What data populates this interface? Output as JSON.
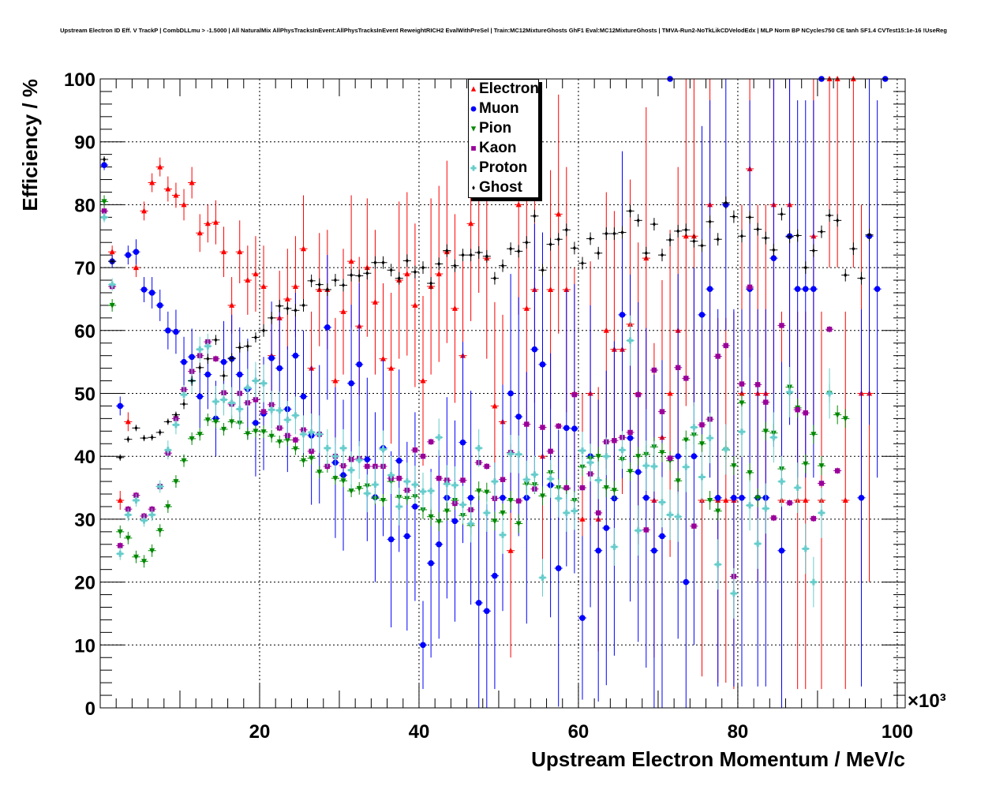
{
  "chart_data": {
    "type": "scatter",
    "title": "Upstream Electron ID Eff. V TrackP | CombDLLmu > -1.5000 | All NaturalMix AllPhysTracksInEvent:AllPhysTracksInEvent ReweightRICH2 EvalWithPreSel | Train:MC12MixtureGhosts GhF1 Eval:MC12MixtureGhosts | TMVA-Run2-NoTkLikCDVelodEdx | MLP Norm BP NCycles750 CE tanh SF1.4 CVTest15:1e-16 !UseReg",
    "xlabel": "Upstream Electron Momentum / MeV/c",
    "ylabel": "Efficiency / %",
    "x_multiplier": "×10³",
    "xlim": [
      0,
      101
    ],
    "ylim": [
      0,
      100
    ],
    "x_bin_width": 1,
    "x_first_center": 0.5,
    "xticks": [
      "20",
      "40",
      "60",
      "80",
      "100"
    ],
    "yticks": [
      "0",
      "10",
      "20",
      "30",
      "40",
      "50",
      "60",
      "70",
      "80",
      "90",
      "100"
    ],
    "grid": true,
    "legend_position": "top-center",
    "series": [
      {
        "name": "Electron",
        "color": "#ff0000",
        "marker": "triangle-up",
        "values": [
          null,
          72.5,
          33,
          45.5,
          70,
          79,
          83.5,
          86,
          82.5,
          81.5,
          80,
          83.5,
          75.5,
          77,
          77.2,
          72.5,
          64,
          72.5,
          68,
          69,
          67,
          56,
          62,
          65,
          67,
          73,
          54,
          66.5,
          66.5,
          52,
          63,
          71,
          60.7,
          70,
          64.5,
          55.5,
          54,
          68,
          69,
          64,
          52,
          67,
          69,
          72.5,
          63.5,
          56,
          77,
          82,
          71.5,
          48,
          45.5,
          25,
          80,
          63.5,
          66.5,
          40,
          66.5,
          78.5,
          66.5,
          50,
          30,
          50,
          30,
          60,
          57,
          57,
          61,
          50,
          71.5,
          33,
          43,
          50,
          60,
          75,
          75,
          33,
          80,
          33,
          33,
          33,
          50,
          85.7,
          50,
          50,
          80,
          33,
          80,
          33,
          33,
          75,
          33,
          100,
          100,
          33,
          100,
          50,
          50,
          null,
          null,
          null
        ],
        "errors": [
          0,
          1,
          1.5,
          1.5,
          1.5,
          1.5,
          1.5,
          1.5,
          2,
          2,
          2.5,
          2.5,
          3,
          3,
          3.5,
          4,
          4.5,
          5,
          5.5,
          6,
          6.5,
          7,
          7.5,
          8,
          8,
          8.5,
          9,
          9,
          9.5,
          10,
          10,
          10.5,
          11,
          11,
          11.5,
          12,
          12,
          12.5,
          13,
          13,
          13.5,
          14,
          14,
          14.5,
          15,
          15,
          15.5,
          16,
          16,
          16.5,
          17,
          17,
          17.5,
          18,
          18,
          18.5,
          19,
          19,
          19.5,
          20,
          20,
          21,
          21,
          22,
          22,
          23,
          23,
          24,
          24,
          25,
          25,
          26,
          26,
          27,
          27,
          28,
          28,
          29,
          29,
          30,
          30,
          30,
          30,
          30,
          30,
          30,
          30,
          30,
          30,
          30,
          30,
          30,
          30,
          30,
          30,
          30,
          30,
          0,
          0,
          0
        ]
      },
      {
        "name": "Muon",
        "color": "#0000ff",
        "marker": "circle",
        "values": [
          86.3,
          71,
          48,
          72,
          72.5,
          66.5,
          66,
          64,
          60,
          59.8,
          55,
          55.8,
          49.5,
          53,
          46,
          55,
          55.5,
          53,
          50.7,
          45.3,
          46.8,
          55.6,
          54,
          47.5,
          56,
          49.5,
          43.3,
          43.5,
          60.5,
          39,
          37,
          51.6,
          54.6,
          39.5,
          33.5,
          41.3,
          26.8,
          39.3,
          27.3,
          32,
          10,
          23,
          26,
          33.4,
          29.7,
          42.2,
          33.4,
          16.7,
          15.4,
          21,
          33.4,
          50,
          46.3,
          33.4,
          57,
          54.6,
          35.4,
          22.2,
          44.5,
          44.4,
          14.3,
          40,
          25,
          28.6,
          33.3,
          62.5,
          42.9,
          37.5,
          33.4,
          25,
          27.3,
          100,
          40,
          20,
          40,
          62.5,
          66.6,
          33.4,
          80,
          33.4,
          33.4,
          66.6,
          33.4,
          33.4,
          71.5,
          25,
          75,
          66.6,
          66.6,
          66.6,
          100,
          null,
          null,
          null,
          null,
          33.4,
          75,
          66.6,
          100
        ],
        "errors": [
          0.8,
          1,
          1.5,
          1.5,
          2,
          2,
          2.5,
          2.5,
          3,
          3.5,
          4,
          4.5,
          5,
          5.5,
          6,
          6.5,
          7,
          7.5,
          8,
          8.5,
          9,
          9,
          9.5,
          10,
          10,
          10.5,
          11,
          11,
          11.5,
          12,
          12,
          12.5,
          13,
          13,
          13.5,
          14,
          14,
          14.5,
          15,
          15,
          7,
          15,
          15,
          16,
          16,
          16,
          17,
          17,
          17,
          18,
          18,
          19,
          19,
          20,
          20,
          21,
          21,
          22,
          22,
          23,
          13,
          24,
          24,
          25,
          25,
          26,
          26,
          27,
          27,
          28,
          28,
          0,
          29,
          20,
          30,
          30,
          30,
          30,
          20,
          30,
          30,
          30,
          30,
          30,
          30,
          30,
          30,
          30,
          30,
          30,
          0,
          0,
          0,
          0,
          0,
          30,
          30,
          30,
          0
        ]
      },
      {
        "name": "Pion",
        "color": "#008800",
        "marker": "triangle-down",
        "values": [
          80.5,
          64,
          28,
          27,
          24,
          23.3,
          25,
          28.2,
          32,
          36,
          39.3,
          42.8,
          43.5,
          45.8,
          45.5,
          44.3,
          45.5,
          45.3,
          43.6,
          44,
          43.9,
          43.2,
          42.3,
          42.6,
          41.2,
          39.3,
          39.7,
          37.5,
          38.4,
          36.5,
          36.1,
          34.5,
          34.9,
          35.3,
          33.3,
          33,
          36,
          33.5,
          33.3,
          33.6,
          31.5,
          30.4,
          29.6,
          31.3,
          33,
          30.6,
          29,
          34.5,
          34.3,
          29.7,
          31,
          33,
          29.3,
          35.6,
          35.5,
          33.7,
          37.4,
          35,
          34.8,
          33,
          38.3,
          39.7,
          40,
          35,
          34.6,
          39.5,
          37.6,
          40,
          40.3,
          41.5,
          40.6,
          39.3,
          36.1,
          42.6,
          43.4,
          42,
          33,
          31.3,
          41,
          38.5,
          48.5,
          37.4,
          33.4,
          44,
          43.7,
          38,
          51,
          47.7,
          38.8,
          43.5,
          38.5,
          50,
          46.6,
          46
        ],
        "errors": [
          1,
          1,
          1,
          1,
          1,
          1,
          1,
          1,
          1,
          1,
          1,
          1,
          1,
          1,
          1,
          1,
          1,
          1,
          1,
          1,
          1,
          1,
          1,
          1,
          1,
          1,
          1,
          1,
          1,
          1,
          1,
          1,
          1,
          1,
          1,
          1,
          1,
          1,
          1,
          1,
          1.5,
          1.5,
          1.5,
          1.5,
          1.5,
          1.5,
          1.5,
          1.5,
          1.5,
          1.5,
          1.5,
          1.5,
          1.5,
          1.5,
          1.5,
          1.5,
          1.5,
          1.5,
          1.5,
          1.5,
          1.5,
          1.5,
          1.5,
          1.5,
          1.5,
          1.5,
          1.5,
          1.5,
          1.5,
          1.5,
          1.5,
          1.5,
          1.5,
          1.5,
          1.5,
          1.5,
          1.5,
          1.5,
          1.5,
          1.5,
          1.5,
          1.5,
          1.5,
          1.5,
          1.5,
          1.5,
          1.5,
          1.5,
          1.5,
          1.5,
          1.5,
          1.5,
          1.5,
          1.5
        ]
      },
      {
        "name": "Kaon",
        "color": "#990099",
        "marker": "square",
        "values": [
          79,
          67,
          25.8,
          31.6,
          33.8,
          30.5,
          31.6,
          35.2,
          40.5,
          46,
          50.6,
          53.5,
          56,
          58.2,
          55.5,
          50.1,
          48.3,
          50,
          48.5,
          49,
          47.1,
          48.2,
          44.5,
          43.3,
          42.6,
          44.2,
          40.8,
          43.5,
          38.4,
          40,
          38.5,
          39.5,
          39.6,
          38.4,
          38.4,
          38.4,
          36.5,
          36.5,
          34.6,
          41,
          40,
          42.3,
          36.5,
          36.2,
          32.5,
          36.2,
          31.5,
          39,
          38.4,
          33.3,
          36.3,
          40.6,
          32.9,
          45.1,
          34.8,
          44.6,
          40.8,
          44.8,
          35,
          49.8,
          35,
          37.2,
          31,
          42.3,
          42.5,
          43,
          43.8,
          49.8,
          28.3,
          53.7,
          47.1,
          39.7,
          54.1,
          52.4,
          28.9,
          45,
          45.9,
          55.9,
          57.6,
          20.9,
          51.5,
          66.9,
          51.4,
          48.6,
          30.2,
          60.8,
          32.6,
          47.4,
          46.9,
          30.1,
          35.7,
          60.2,
          37.7
        ],
        "errors": [
          0.5,
          0.5,
          0.5,
          0.5,
          0.5,
          0.5,
          0.5,
          0.5,
          0.5,
          0.5,
          0.5,
          0.5,
          0.5,
          0.5,
          0.5,
          0.5,
          0.5,
          0.5,
          0.5,
          0.5,
          0.5,
          0.5,
          0.5,
          0.5,
          0.5,
          0.5,
          0.5,
          0.5,
          0.5,
          0.5,
          0.5,
          0.5,
          0.5,
          0.5,
          0.5,
          0.5,
          0.5,
          0.5,
          0.5,
          0.5,
          0.5,
          0.5,
          0.5,
          0.5,
          0.5,
          0.5,
          0.5,
          0.5,
          0.5,
          0.5,
          0.5,
          0.5,
          0.5,
          0.5,
          0.5,
          0.5,
          0.5,
          0.5,
          0.5,
          0.5,
          0.5,
          0.5,
          0.5,
          0.5,
          0.5,
          0.5,
          0.5,
          0.5,
          0.5,
          0.5,
          0.5,
          0.5,
          0.5,
          0.5,
          0.5,
          0.5,
          0.5,
          0.5,
          0.5,
          0.5,
          0.5,
          0.5,
          0.5,
          0.5,
          0.5,
          0.5,
          0.5,
          0.5,
          0.5,
          0.5,
          0.5,
          0.5,
          0.5
        ]
      },
      {
        "name": "Proton",
        "color": "#66cccc",
        "marker": "cross",
        "values": [
          78,
          67.3,
          24.5,
          30.7,
          33,
          29.8,
          30.7,
          35.2,
          41,
          45,
          49.8,
          52,
          57,
          57.5,
          48.7,
          49,
          48.5,
          47.5,
          50.9,
          52,
          51.6,
          47.4,
          47.3,
          45.8,
          46.5,
          43.5,
          43.8,
          43.5,
          41.3,
          40,
          41.3,
          37.8,
          39.4,
          34.1,
          35.5,
          41.1,
          37,
          32,
          36,
          35.5,
          34.4,
          34.5,
          43,
          35.6,
          35.4,
          32.3,
          29.3,
          41.3,
          31,
          36,
          27.5,
          40.4,
          40.3,
          36.3,
          37.1,
          20.7,
          36.4,
          33.3,
          31,
          31.3,
          40.9,
          39,
          36.2,
          40,
          25.6,
          41,
          58.4,
          28.2,
          38.5,
          38.4,
          32.7,
          30.7,
          30.4,
          38.3,
          44.6,
          36.7,
          42.9,
          22.8,
          41.1,
          18.2,
          43.9,
          32.2,
          26.1,
          31.7,
          43,
          36,
          50.2,
          35,
          25.3,
          20,
          31,
          50
        ],
        "errors": [
          0.8,
          1,
          1,
          1,
          1,
          1,
          1,
          1,
          1.5,
          1.5,
          1.5,
          2,
          2,
          2,
          2.5,
          2.5,
          2.5,
          3,
          3,
          3,
          3,
          3,
          3,
          3,
          3,
          3,
          3,
          3,
          3,
          3,
          3,
          3,
          3,
          3,
          3,
          3,
          3,
          3,
          3,
          3,
          3,
          3,
          3,
          3,
          3,
          3,
          3,
          3,
          3,
          3,
          3,
          3,
          3,
          3,
          3,
          3,
          3,
          3,
          3,
          3,
          3,
          3,
          3,
          3,
          3,
          3,
          4,
          4,
          4,
          4,
          4,
          4,
          4,
          4,
          4,
          4,
          4,
          4,
          4,
          4,
          4,
          4,
          4,
          4,
          4,
          4,
          4,
          4,
          4,
          4,
          4,
          4
        ]
      },
      {
        "name": "Ghost",
        "color": "#000000",
        "marker": "diamond",
        "values": [
          87.2,
          71,
          39.8,
          42.7,
          44.5,
          42.9,
          43,
          43.8,
          45.5,
          46.6,
          48.3,
          52,
          54.1,
          55.5,
          58.5,
          52.8,
          55.6,
          57.3,
          57.5,
          58.9,
          60,
          62,
          63.9,
          63.5,
          63.2,
          64,
          67.9,
          67.3,
          66.5,
          68,
          67.2,
          68.8,
          68.7,
          69.1,
          70.8,
          70.8,
          69.6,
          68.3,
          71.1,
          69.3,
          70,
          67.5,
          70.6,
          72.7,
          70.3,
          72,
          72,
          72.4,
          71.8,
          68.3,
          70.3,
          73,
          72.6,
          74,
          78.2,
          69.6,
          73.7,
          74.5,
          76,
          73.1,
          70.7,
          74.6,
          72.3,
          75.4,
          75.4,
          75.6,
          79,
          77.5,
          72.3,
          76.9,
          72,
          74.4,
          75.8,
          76,
          74.2,
          73.5,
          77.3,
          74.5,
          80.3,
          78.1,
          75,
          78,
          76.1,
          74.7,
          72.8,
          78.5,
          74.9,
          75.1,
          70,
          72.7,
          75.7,
          78.3,
          77.5,
          68.8,
          73,
          68.3,
          75.2
        ],
        "errors": [
          0.5,
          0.5,
          0.5,
          0.5,
          0.5,
          0.5,
          0.5,
          0.5,
          0.5,
          0.5,
          0.8,
          0.8,
          0.8,
          0.8,
          0.8,
          0.8,
          0.8,
          0.8,
          0.8,
          0.8,
          1,
          1,
          1,
          1,
          1,
          1,
          1,
          1,
          1,
          1,
          1,
          1,
          1,
          1,
          1,
          1,
          1,
          1,
          1,
          1,
          1,
          1,
          1,
          1,
          1,
          1,
          1,
          1,
          1,
          1,
          1,
          1,
          1,
          1,
          1,
          1,
          1,
          1,
          1,
          1,
          1,
          1,
          1,
          1,
          1,
          1,
          1,
          1,
          1,
          1,
          1,
          1,
          1,
          1,
          1,
          1,
          1,
          1,
          1,
          1,
          1,
          1,
          1,
          1,
          1,
          1,
          1,
          1,
          1,
          1,
          1,
          1,
          1,
          1,
          1,
          1,
          1
        ]
      }
    ]
  }
}
